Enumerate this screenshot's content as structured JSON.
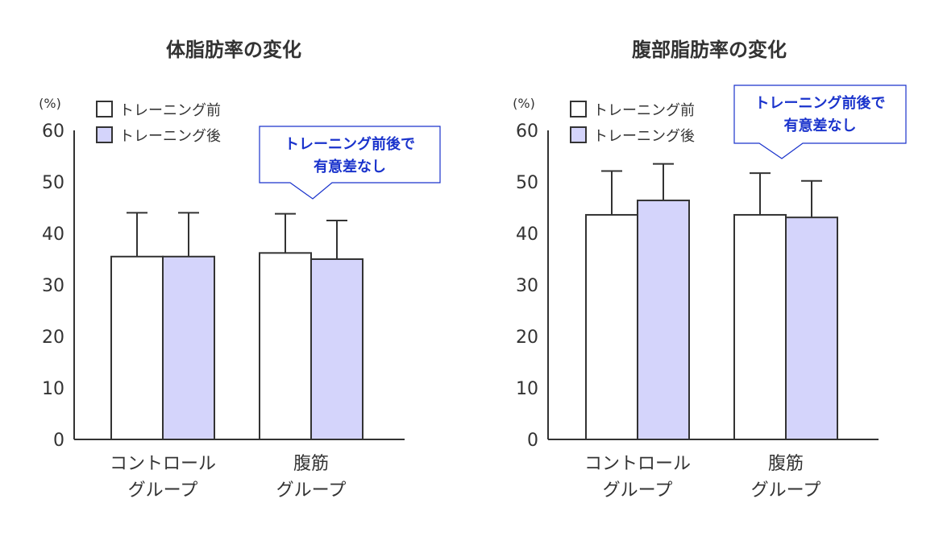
{
  "colors": {
    "before_fill": "#ffffff",
    "after_fill": "#d4d4fb",
    "stroke": "#333333",
    "callout_border": "#1a33cc",
    "callout_text": "#1a33cc"
  },
  "chart_data": [
    {
      "type": "bar",
      "title": "体脂肪率の変化",
      "unit_label": "(%)",
      "ylim": [
        0,
        60
      ],
      "yticks": [
        0,
        10,
        20,
        30,
        40,
        50,
        60
      ],
      "categories": [
        [
          "コントロール",
          "グループ"
        ],
        [
          "腹筋",
          "グループ"
        ]
      ],
      "series": [
        {
          "name": "トレーニング前",
          "values": [
            35.5,
            36.2
          ],
          "errors": [
            8.5,
            7.6
          ]
        },
        {
          "name": "トレーニング後",
          "values": [
            35.5,
            35.0
          ],
          "errors": [
            8.5,
            7.5
          ]
        }
      ],
      "legend_position": "top-left",
      "callout": [
        "トレーニング前後で",
        "有意差なし"
      ]
    },
    {
      "type": "bar",
      "title": "腹部脂肪率の変化",
      "unit_label": "(%)",
      "ylim": [
        0,
        60
      ],
      "yticks": [
        0,
        10,
        20,
        30,
        40,
        50,
        60
      ],
      "categories": [
        [
          "コントロール",
          "グループ"
        ],
        [
          "腹筋",
          "グループ"
        ]
      ],
      "series": [
        {
          "name": "トレーニング前",
          "values": [
            43.6,
            43.6
          ],
          "errors": [
            8.5,
            8.1
          ]
        },
        {
          "name": "トレーニング後",
          "values": [
            46.4,
            43.1
          ],
          "errors": [
            7.1,
            7.1
          ]
        }
      ],
      "legend_position": "top-left",
      "callout": [
        "トレーニング前後で",
        "有意差なし"
      ]
    }
  ]
}
